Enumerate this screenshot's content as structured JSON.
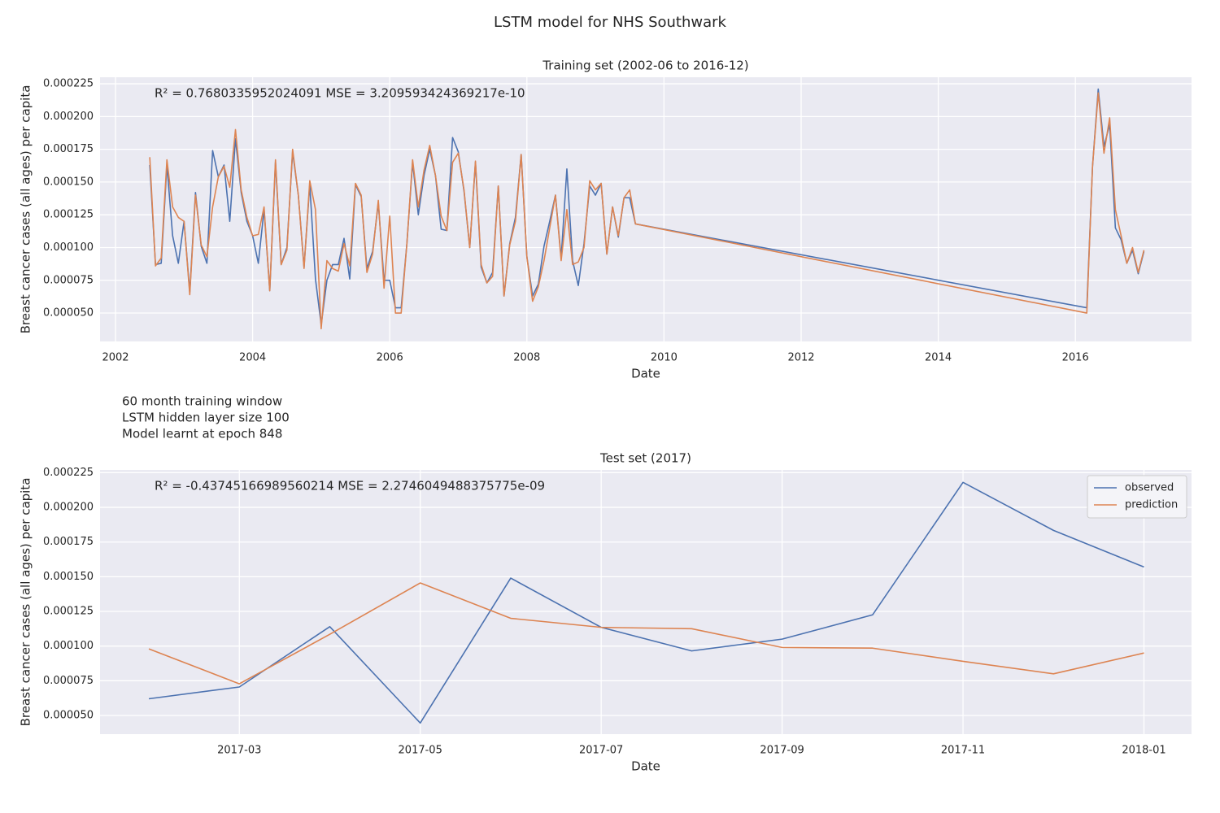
{
  "title": "LSTM model for NHS Southwark",
  "notes": [
    "60 month training window",
    "LSTM hidden layer size 100",
    "Model learnt at epoch 848"
  ],
  "chart_data": [
    {
      "type": "line",
      "title": "Training set (2002-06 to 2016-12)",
      "annotation": "R² = 0.7680335952024091  MSE = 3.209593424369217e-10",
      "x_label": "Date",
      "y_label": "Breast cancer cases (all ages) per capita",
      "x": [
        "2002-06",
        "2002-07",
        "2002-08",
        "2002-09",
        "2002-10",
        "2002-11",
        "2002-12",
        "2003-01",
        "2003-02",
        "2003-03",
        "2003-04",
        "2003-05",
        "2003-06",
        "2003-07",
        "2003-08",
        "2003-09",
        "2003-10",
        "2003-11",
        "2003-12",
        "2004-01",
        "2004-02",
        "2004-03",
        "2004-04",
        "2004-05",
        "2004-06",
        "2004-07",
        "2004-08",
        "2004-09",
        "2004-10",
        "2004-11",
        "2004-12",
        "2005-01",
        "2005-02",
        "2005-03",
        "2005-04",
        "2005-05",
        "2005-06",
        "2005-07",
        "2005-08",
        "2005-09",
        "2005-10",
        "2005-11",
        "2005-12",
        "2006-01",
        "2006-02",
        "2006-03",
        "2006-04",
        "2006-05",
        "2006-06",
        "2006-07",
        "2006-08",
        "2006-09",
        "2006-10",
        "2006-11",
        "2006-12",
        "2007-01",
        "2007-02",
        "2007-03",
        "2007-04",
        "2007-05",
        "2007-06",
        "2007-07",
        "2007-08",
        "2007-09",
        "2007-10",
        "2007-11",
        "2007-12",
        "2008-01",
        "2008-02",
        "2008-03",
        "2008-04",
        "2008-05",
        "2008-06",
        "2008-07",
        "2008-08",
        "2008-09",
        "2008-10",
        "2008-11",
        "2008-12",
        "2009-01",
        "2009-02",
        "2009-03",
        "2009-04",
        "2009-05",
        "2009-06",
        "2009-07",
        "2016-02",
        "2016-03",
        "2016-04",
        "2016-05",
        "2016-06",
        "2016-07",
        "2016-08",
        "2016-09",
        "2016-10",
        "2016-11",
        "2016-12"
      ],
      "series": [
        {
          "color": "#4c72b0",
          "values": [
            0.000163,
            8.7e-05,
            8.8e-05,
            0.000163,
            0.000109,
            8.8e-05,
            0.00012,
            6.6e-05,
            0.000142,
            0.000101,
            8.8e-05,
            0.000174,
            0.000154,
            0.000163,
            0.00012,
            0.000183,
            0.000142,
            0.00012,
            0.000109,
            8.8e-05,
            0.000129,
            6.7e-05,
            0.000165,
            8.7e-05,
            0.0001,
            0.000173,
            0.00014,
            8.5e-05,
            0.000148,
            7.6e-05,
            4.1e-05,
            7.5e-05,
            8.7e-05,
            8.7e-05,
            0.000107,
            7.6e-05,
            0.000148,
            0.000139,
            8.4e-05,
            9.7e-05,
            0.000134,
            7.5e-05,
            7.5e-05,
            5.4e-05,
            5.4e-05,
            0.000103,
            0.000165,
            0.000125,
            0.000155,
            0.000175,
            0.000155,
            0.000114,
            0.000113,
            0.000184,
            0.000173,
            0.000143,
            0.0001,
            0.000165,
            8.5e-05,
            7.3e-05,
            8.1e-05,
            0.000147,
            6.3e-05,
            0.000103,
            0.000123,
            0.000171,
            9.3e-05,
            6.3e-05,
            7.2e-05,
            0.000101,
            0.00012,
            0.00014,
            9.2e-05,
            0.00016,
            9e-05,
            7.1e-05,
            0.000103,
            0.000147,
            0.00014,
            0.000149,
            9.5e-05,
            0.000131,
            0.000108,
            0.000138,
            0.000138,
            0.000118,
            5.4e-05,
            0.000162,
            0.000221,
            0.000177,
            0.000194,
            0.000115,
            0.000106,
            8.8e-05,
            9.8e-05,
            8e-05,
            9.7e-05
          ]
        },
        {
          "color": "#dd8452",
          "values": [
            0.000169,
            8.6e-05,
            9.2e-05,
            0.000167,
            0.000131,
            0.000123,
            0.00012,
            6.4e-05,
            0.00014,
            0.000102,
            9.3e-05,
            0.000131,
            0.000154,
            0.000162,
            0.000146,
            0.00019,
            0.000144,
            0.000123,
            0.000109,
            0.00011,
            0.000131,
            6.7e-05,
            0.000167,
            8.7e-05,
            9.8e-05,
            0.000175,
            0.00014,
            8.4e-05,
            0.000151,
            0.000129,
            3.8e-05,
            9e-05,
            8.4e-05,
            8.2e-05,
            0.000103,
            8.6e-05,
            0.000149,
            0.00014,
            8.1e-05,
            9.5e-05,
            0.000136,
            6.9e-05,
            0.000124,
            5e-05,
            5e-05,
            0.000103,
            0.000167,
            0.000131,
            0.000159,
            0.000178,
            0.000155,
            0.000124,
            0.000113,
            0.000165,
            0.000172,
            0.000144,
            0.0001,
            0.000166,
            8.7e-05,
            7.3e-05,
            7.8e-05,
            0.000147,
            6.3e-05,
            0.000102,
            0.00012,
            0.000171,
            9.3e-05,
            5.9e-05,
            7e-05,
            9e-05,
            0.000115,
            0.00014,
            9e-05,
            0.000129,
            8.7e-05,
            8.9e-05,
            0.0001,
            0.000151,
            0.000144,
            0.000149,
            9.5e-05,
            0.000131,
            0.000109,
            0.000138,
            0.000144,
            0.000118,
            5e-05,
            0.000162,
            0.000218,
            0.000172,
            0.000199,
            0.000129,
            0.000109,
            8.8e-05,
            0.0001,
            8.1e-05,
            9.8e-05
          ]
        }
      ],
      "xlim": [
        "2001-10-10",
        "2017-09-11"
      ],
      "xticks": [
        2002,
        2004,
        2006,
        2008,
        2010,
        2012,
        2014,
        2016
      ],
      "ylim": [
        2.83e-05,
        0.00023
      ],
      "yticks": [
        {
          "value": 5e-05,
          "label": "0.000050"
        },
        7.5e-05,
        {
          "value": 0.0001,
          "label": "0.000100"
        },
        0.000125,
        {
          "value": 0.00015,
          "label": "0.000150"
        },
        0.000175,
        {
          "value": 0.0002,
          "label": "0.000200"
        },
        0.000225
      ],
      "grid": true
    },
    {
      "type": "line",
      "title": "Test set (2017)",
      "annotation": "R² = -0.43745166989560214  MSE = 2.2746049488375775e-09",
      "x_label": "Date",
      "y_label": "Breast cancer cases (all ages) per capita",
      "x": [
        "2017-01",
        "2017-02",
        "2017-03",
        "2017-04",
        "2017-05",
        "2017-06",
        "2017-07",
        "2017-08",
        "2017-09",
        "2017-10",
        "2017-11",
        "2017-12"
      ],
      "series": [
        {
          "name": "observed",
          "color": "#4c72b0",
          "values": [
            6.2e-05,
            7.05e-05,
            0.000114,
            4.45e-05,
            0.000149,
            0.0001135,
            9.65e-05,
            0.000105,
            0.0001225,
            0.000218,
            0.0001834,
            0.000157
          ]
        },
        {
          "name": "prediction",
          "color": "#dd8452",
          "values": [
            9.8e-05,
            7.28e-05,
            0.0001085,
            0.0001455,
            0.00012,
            0.0001135,
            0.0001125,
            9.9e-05,
            9.85e-05,
            8.9e-05,
            8e-05,
            9.5e-05
          ]
        }
      ],
      "xlim": [
        "2017-01-15",
        "2018-01-17"
      ],
      "xticks": [
        "2017-03",
        "2017-05",
        "2017-07",
        "2017-09",
        "2017-11",
        "2018-01"
      ],
      "ylim": [
        3.65e-05,
        0.000227
      ],
      "yticks": [
        {
          "value": 5e-05,
          "label": "0.000050"
        },
        7.5e-05,
        {
          "value": 0.0001,
          "label": "0.000100"
        },
        0.000125,
        {
          "value": 0.00015,
          "label": "0.000150"
        },
        0.000175,
        {
          "value": 0.0002,
          "label": "0.000200"
        },
        0.000225
      ],
      "grid": true,
      "legend": "upper right"
    }
  ]
}
